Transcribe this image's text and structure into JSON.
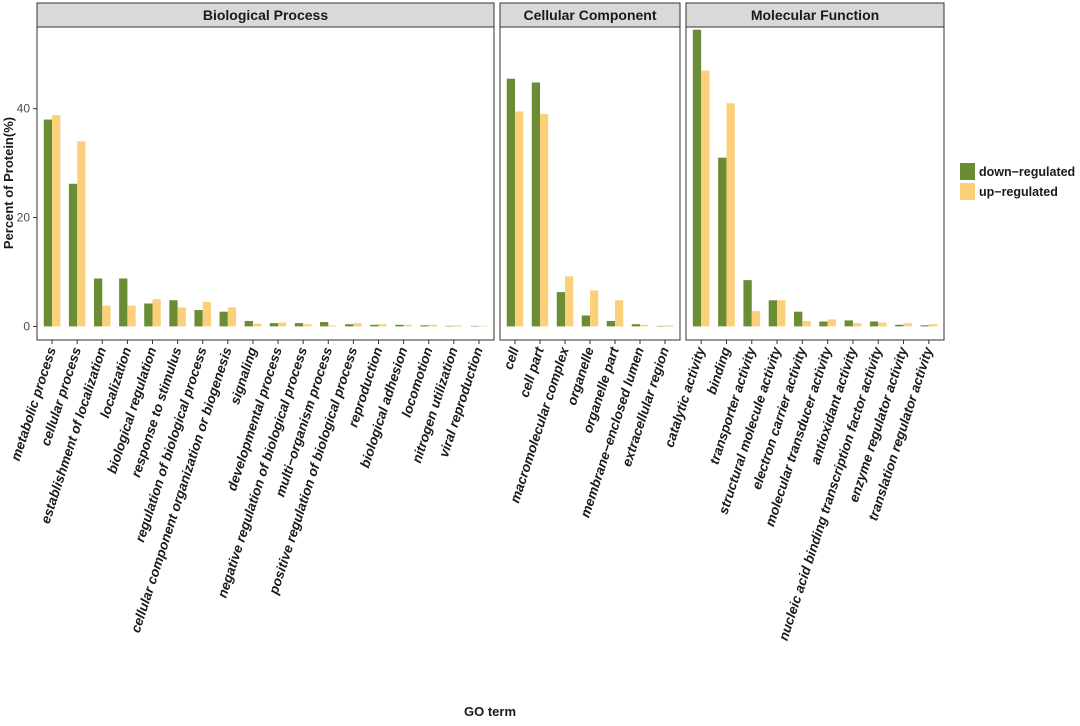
{
  "chart_data": {
    "type": "bar",
    "ylabel": "Percent of Protein(%)",
    "xlabel": "GO term",
    "ylim": [
      -2.5,
      55
    ],
    "yticks": [
      0,
      20,
      40
    ],
    "grid": false,
    "legend_position": "right",
    "series": [
      {
        "name": "down−regulated",
        "color": "#6a8c34"
      },
      {
        "name": "up−regulated",
        "color": "#fcd07a"
      }
    ],
    "panels": [
      {
        "title": "Biological Process",
        "categories": [
          "metabolic process",
          "cellular process",
          "establishment of localization",
          "localization",
          "biological regulation",
          "response to stimulus",
          "regulation of biological process",
          "cellular component organization or biogenesis",
          "signaling",
          "developmental process",
          "negative regulation of biological process",
          "multi−organism process",
          "positive regulation of biological process",
          "reproduction",
          "biological adhesion",
          "locomotion",
          "nitrogen utilization",
          "viral reproduction"
        ],
        "down": [
          38,
          26.2,
          8.8,
          8.8,
          4.2,
          4.8,
          3.0,
          2.7,
          1.0,
          0.6,
          0.6,
          0.8,
          0.4,
          0.3,
          0.3,
          0.2,
          0.1,
          0.1
        ],
        "up": [
          38.8,
          34,
          3.8,
          3.8,
          5.0,
          3.5,
          4.5,
          3.5,
          0.5,
          0.7,
          0.4,
          0.2,
          0.6,
          0.4,
          0.3,
          0.3,
          0.2,
          0.1
        ]
      },
      {
        "title": "Cellular Component",
        "categories": [
          "cell",
          "cell part",
          "macromolecular complex",
          "organelle",
          "organelle part",
          "membrane−enclosed lumen",
          "extracellular region"
        ],
        "down": [
          45.5,
          44.8,
          6.3,
          2.0,
          1.0,
          0.4,
          0.1
        ],
        "up": [
          39.5,
          39,
          9.2,
          6.6,
          4.8,
          0.3,
          0.2
        ]
      },
      {
        "title": "Molecular Function",
        "categories": [
          "catalytic activity",
          "binding",
          "transporter activity",
          "structural molecule activity",
          "electron carrier activity",
          "molecular transducer activity",
          "antioxidant activity",
          "nucleic acid binding transcription factor activity",
          "enzyme regulator activity",
          "translation regulator activity"
        ],
        "down": [
          54.5,
          31,
          8.5,
          4.8,
          2.7,
          0.9,
          1.1,
          0.9,
          0.3,
          0.2
        ],
        "up": [
          47,
          41,
          2.8,
          4.8,
          1.0,
          1.3,
          0.6,
          0.7,
          0.6,
          0.4
        ]
      }
    ]
  }
}
